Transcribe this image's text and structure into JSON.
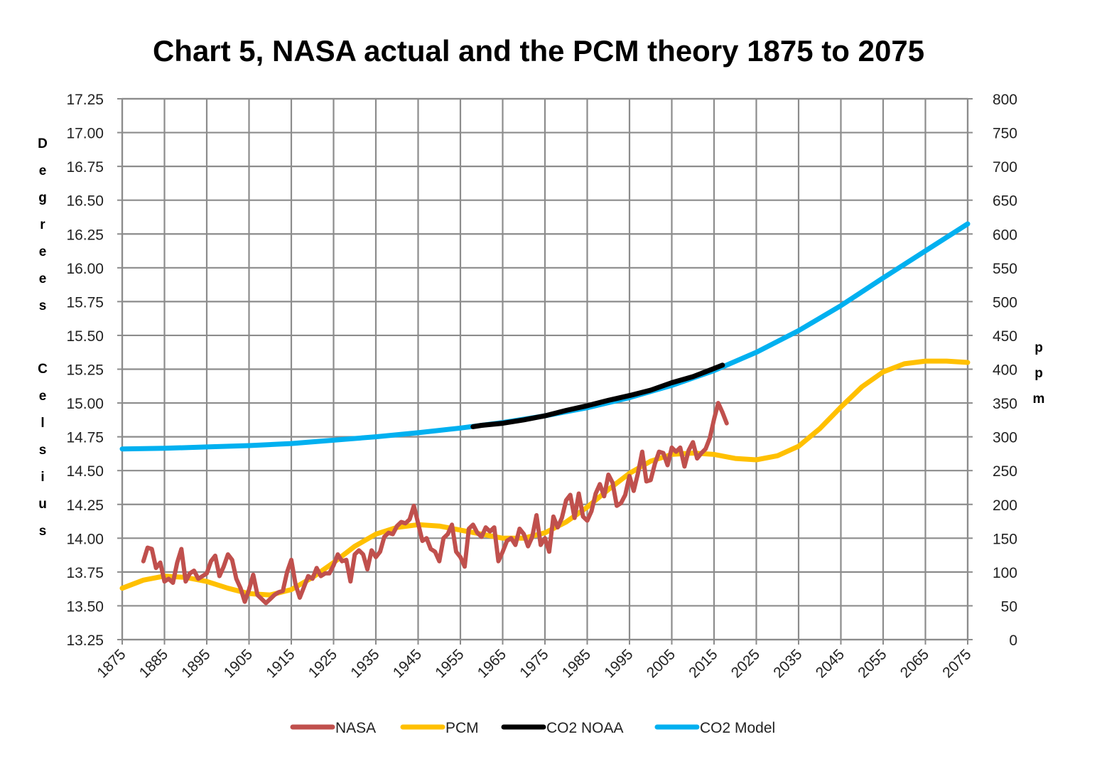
{
  "chart_data": {
    "type": "line",
    "title": "Chart 5, NASA actual and the PCM theory 1875 to 2075",
    "xlim": [
      1875,
      2075
    ],
    "x_ticks": [
      "1875",
      "1885",
      "1895",
      "1905",
      "1915",
      "1925",
      "1935",
      "1945",
      "1955",
      "1965",
      "1975",
      "1985",
      "1995",
      "2005",
      "2015",
      "2025",
      "2035",
      "2045",
      "2055",
      "2065",
      "2075"
    ],
    "y_left": {
      "label_top": "Degrees",
      "label_bottom": "Celsius",
      "lim": [
        13.25,
        17.25
      ],
      "ticks": [
        "13.25",
        "13.50",
        "13.75",
        "14.00",
        "14.25",
        "14.50",
        "14.75",
        "15.00",
        "15.25",
        "15.50",
        "15.75",
        "16.00",
        "16.25",
        "16.50",
        "16.75",
        "17.00",
        "17.25"
      ]
    },
    "y_right": {
      "label": "ppm",
      "lim": [
        0,
        800
      ],
      "ticks": [
        "0",
        "50",
        "100",
        "150",
        "200",
        "250",
        "300",
        "350",
        "400",
        "450",
        "500",
        "550",
        "600",
        "650",
        "700",
        "750",
        "800"
      ]
    },
    "grid": true,
    "legend": "bottom",
    "series": [
      {
        "name": "NASA",
        "axis": "left",
        "color": "#c0504d",
        "x": [
          1880,
          1881,
          1882,
          1883,
          1884,
          1885,
          1886,
          1887,
          1888,
          1889,
          1890,
          1891,
          1892,
          1893,
          1894,
          1895,
          1896,
          1897,
          1898,
          1899,
          1900,
          1901,
          1902,
          1903,
          1904,
          1905,
          1906,
          1907,
          1908,
          1909,
          1910,
          1911,
          1912,
          1913,
          1914,
          1915,
          1916,
          1917,
          1918,
          1919,
          1920,
          1921,
          1922,
          1923,
          1924,
          1925,
          1926,
          1927,
          1928,
          1929,
          1930,
          1931,
          1932,
          1933,
          1934,
          1935,
          1936,
          1937,
          1938,
          1939,
          1940,
          1941,
          1942,
          1943,
          1944,
          1945,
          1946,
          1947,
          1948,
          1949,
          1950,
          1951,
          1952,
          1953,
          1954,
          1955,
          1956,
          1957,
          1958,
          1959,
          1960,
          1961,
          1962,
          1963,
          1964,
          1965,
          1966,
          1967,
          1968,
          1969,
          1970,
          1971,
          1972,
          1973,
          1974,
          1975,
          1976,
          1977,
          1978,
          1979,
          1980,
          1981,
          1982,
          1983,
          1984,
          1985,
          1986,
          1987,
          1988,
          1989,
          1990,
          1991,
          1992,
          1993,
          1994,
          1995,
          1996,
          1997,
          1998,
          1999,
          2000,
          2001,
          2002,
          2003,
          2004,
          2005,
          2006,
          2007,
          2008,
          2009,
          2010,
          2011,
          2012,
          2013,
          2014,
          2015,
          2016,
          2017,
          2018
        ],
        "y": [
          13.83,
          13.93,
          13.92,
          13.78,
          13.82,
          13.68,
          13.7,
          13.67,
          13.82,
          13.92,
          13.68,
          13.74,
          13.76,
          13.7,
          13.72,
          13.74,
          13.83,
          13.87,
          13.72,
          13.79,
          13.88,
          13.84,
          13.7,
          13.63,
          13.53,
          13.62,
          13.73,
          13.58,
          13.55,
          13.52,
          13.55,
          13.58,
          13.6,
          13.61,
          13.75,
          13.84,
          13.66,
          13.56,
          13.64,
          13.72,
          13.7,
          13.78,
          13.72,
          13.74,
          13.74,
          13.8,
          13.88,
          13.83,
          13.84,
          13.68,
          13.88,
          13.91,
          13.88,
          13.77,
          13.91,
          13.86,
          13.9,
          14.01,
          14.04,
          14.03,
          14.09,
          14.12,
          14.11,
          14.14,
          14.24,
          14.11,
          13.98,
          14.0,
          13.92,
          13.9,
          13.83,
          14.0,
          14.03,
          14.1,
          13.9,
          13.86,
          13.79,
          14.07,
          14.1,
          14.04,
          14.01,
          14.08,
          14.05,
          14.08,
          13.83,
          13.9,
          13.98,
          14.0,
          13.95,
          14.07,
          14.03,
          13.94,
          14.01,
          14.17,
          13.95,
          14.0,
          13.9,
          14.16,
          14.08,
          14.15,
          14.28,
          14.32,
          14.15,
          14.33,
          14.16,
          14.13,
          14.2,
          14.33,
          14.4,
          14.31,
          14.47,
          14.41,
          14.24,
          14.26,
          14.32,
          14.46,
          14.35,
          14.48,
          14.64,
          14.42,
          14.43,
          14.55,
          14.64,
          14.63,
          14.54,
          14.67,
          14.64,
          14.67,
          14.53,
          14.65,
          14.71,
          14.59,
          14.63,
          14.66,
          14.74,
          14.88,
          15.0,
          14.93,
          14.85
        ]
      },
      {
        "name": "PCM",
        "axis": "left",
        "color": "#ffc000",
        "x": [
          1875,
          1880,
          1885,
          1890,
          1895,
          1900,
          1905,
          1910,
          1915,
          1920,
          1925,
          1930,
          1935,
          1940,
          1945,
          1950,
          1955,
          1960,
          1965,
          1970,
          1975,
          1980,
          1985,
          1990,
          1995,
          2000,
          2005,
          2010,
          2015,
          2020,
          2025,
          2030,
          2035,
          2040,
          2045,
          2050,
          2055,
          2060,
          2065,
          2070,
          2075
        ],
        "y": [
          13.63,
          13.69,
          13.72,
          13.71,
          13.68,
          13.63,
          13.59,
          13.58,
          13.62,
          13.71,
          13.82,
          13.94,
          14.03,
          14.08,
          14.1,
          14.09,
          14.06,
          14.03,
          14.0,
          14.0,
          14.04,
          14.12,
          14.23,
          14.36,
          14.48,
          14.57,
          14.62,
          14.63,
          14.62,
          14.59,
          14.58,
          14.61,
          14.68,
          14.81,
          14.97,
          15.12,
          15.23,
          15.29,
          15.31,
          15.31,
          15.3
        ]
      },
      {
        "name": "CO2 NOAA",
        "axis": "right",
        "color": "#000000",
        "x": [
          1958,
          1960,
          1965,
          1970,
          1975,
          1980,
          1985,
          1990,
          1995,
          2000,
          2005,
          2010,
          2015,
          2017
        ],
        "y": [
          315,
          317,
          320,
          325,
          331,
          339,
          346,
          354,
          361,
          369,
          380,
          389,
          401,
          406
        ]
      },
      {
        "name": "CO2 Model",
        "axis": "right",
        "color": "#00b0f0",
        "x": [
          1875,
          1885,
          1895,
          1905,
          1915,
          1925,
          1935,
          1945,
          1955,
          1965,
          1975,
          1985,
          1995,
          2005,
          2015,
          2025,
          2035,
          2045,
          2055,
          2065,
          2075
        ],
        "y": [
          282,
          283,
          285,
          287,
          290,
          295,
          300,
          306,
          313,
          321,
          331,
          343,
          358,
          376,
          398,
          425,
          457,
          494,
          535,
          575,
          615
        ]
      }
    ]
  }
}
